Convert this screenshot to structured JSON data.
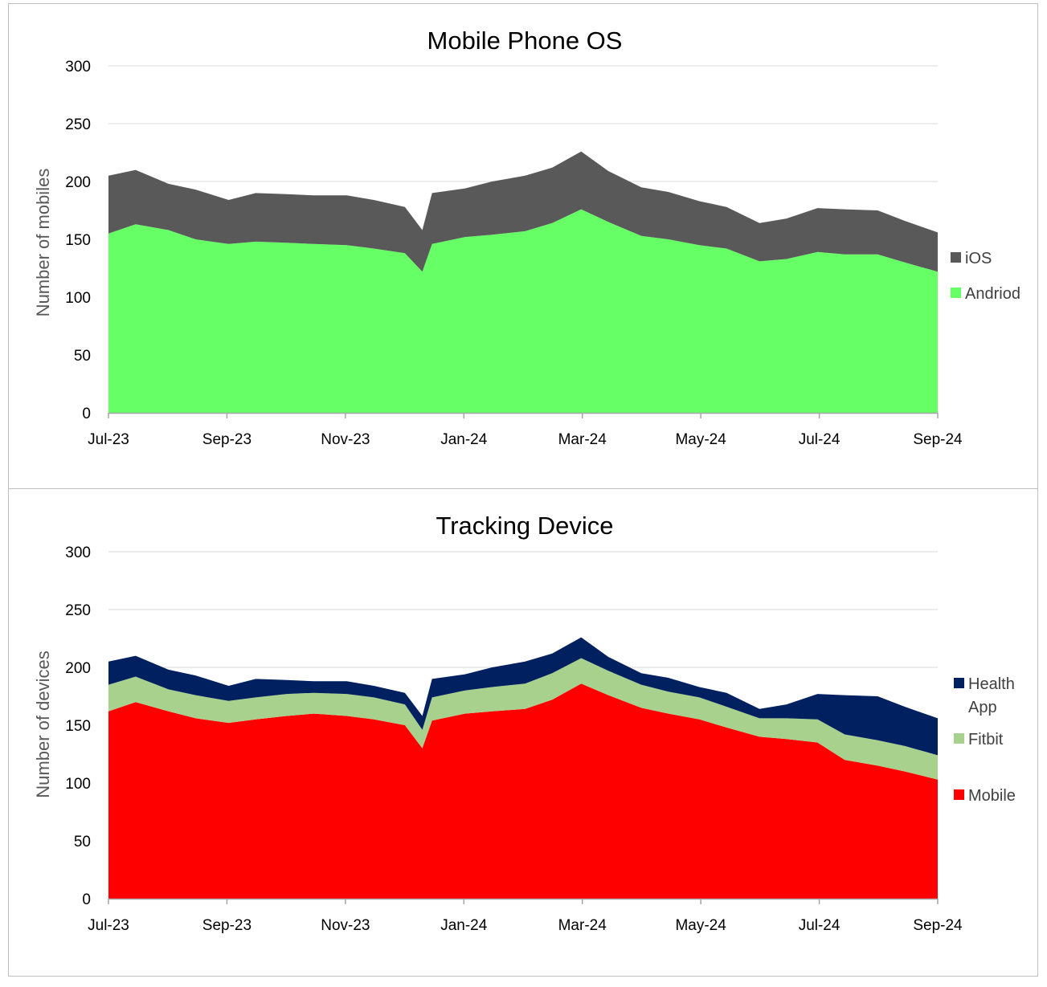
{
  "chart_data": [
    {
      "type": "area",
      "stacked": true,
      "title": "Mobile Phone OS",
      "xlabel": "",
      "ylabel": "Number of mobiles",
      "ylim": [
        0,
        300
      ],
      "yticks": [
        "0",
        "50",
        "100",
        "150",
        "200",
        "250",
        "300"
      ],
      "xticks": [
        "Jul-23",
        "Sep-23",
        "Nov-23",
        "Jan-24",
        "Mar-24",
        "May-24",
        "Jul-24",
        "Sep-24"
      ],
      "x": [
        "2023-07-01",
        "2023-07-15",
        "2023-08-01",
        "2023-08-15",
        "2023-09-01",
        "2023-09-15",
        "2023-10-01",
        "2023-10-15",
        "2023-11-01",
        "2023-11-15",
        "2023-12-01",
        "2023-12-10",
        "2023-12-15",
        "2024-01-01",
        "2024-01-15",
        "2024-02-01",
        "2024-02-15",
        "2024-03-01",
        "2024-03-15",
        "2024-04-01",
        "2024-04-15",
        "2024-05-01",
        "2024-05-15",
        "2024-06-01",
        "2024-06-15",
        "2024-07-01",
        "2024-07-15",
        "2024-08-01",
        "2024-08-15",
        "2024-09-01"
      ],
      "grid": true,
      "legend": "right",
      "series": [
        {
          "name": "Andriod",
          "color": "#66ff66",
          "values": [
            155,
            163,
            158,
            150,
            146,
            148,
            147,
            146,
            145,
            142,
            138,
            122,
            146,
            152,
            154,
            157,
            164,
            176,
            165,
            153,
            150,
            145,
            142,
            131,
            133,
            139,
            137,
            137,
            130,
            122
          ]
        },
        {
          "name": "iOS",
          "color": "#595959",
          "values": [
            50,
            47,
            40,
            43,
            38,
            42,
            42,
            42,
            43,
            42,
            40,
            36,
            44,
            42,
            46,
            48,
            48,
            50,
            44,
            42,
            41,
            38,
            36,
            33,
            35,
            38,
            39,
            38,
            36,
            34
          ]
        }
      ]
    },
    {
      "type": "area",
      "stacked": true,
      "title": "Tracking Device",
      "xlabel": "",
      "ylabel": "Number of devices",
      "ylim": [
        0,
        300
      ],
      "yticks": [
        "0",
        "50",
        "100",
        "150",
        "200",
        "250",
        "300"
      ],
      "xticks": [
        "Jul-23",
        "Sep-23",
        "Nov-23",
        "Jan-24",
        "Mar-24",
        "May-24",
        "Jul-24",
        "Sep-24"
      ],
      "x": [
        "2023-07-01",
        "2023-07-15",
        "2023-08-01",
        "2023-08-15",
        "2023-09-01",
        "2023-09-15",
        "2023-10-01",
        "2023-10-15",
        "2023-11-01",
        "2023-11-15",
        "2023-12-01",
        "2023-12-10",
        "2023-12-15",
        "2024-01-01",
        "2024-01-15",
        "2024-02-01",
        "2024-02-15",
        "2024-03-01",
        "2024-03-15",
        "2024-04-01",
        "2024-04-15",
        "2024-05-01",
        "2024-05-15",
        "2024-06-01",
        "2024-06-15",
        "2024-07-01",
        "2024-07-15",
        "2024-08-01",
        "2024-08-15",
        "2024-09-01"
      ],
      "grid": true,
      "legend": "right",
      "series": [
        {
          "name": "Mobile",
          "color": "#ff0000",
          "values": [
            162,
            170,
            162,
            156,
            152,
            155,
            158,
            160,
            158,
            155,
            150,
            130,
            154,
            160,
            162,
            164,
            172,
            186,
            176,
            165,
            160,
            155,
            148,
            140,
            138,
            135,
            120,
            115,
            110,
            103
          ]
        },
        {
          "name": "Fitbit",
          "color": "#a9d18e",
          "values": [
            23,
            22,
            19,
            20,
            19,
            19,
            19,
            18,
            19,
            19,
            18,
            16,
            20,
            20,
            21,
            22,
            23,
            22,
            21,
            20,
            19,
            19,
            18,
            16,
            18,
            20,
            22,
            22,
            22,
            21
          ]
        },
        {
          "name": "Health App",
          "color": "#002060",
          "values": [
            20,
            18,
            17,
            17,
            13,
            16,
            12,
            10,
            11,
            10,
            10,
            12,
            16,
            14,
            17,
            19,
            17,
            18,
            12,
            10,
            12,
            9,
            12,
            8,
            12,
            22,
            34,
            38,
            34,
            32
          ]
        }
      ]
    }
  ]
}
